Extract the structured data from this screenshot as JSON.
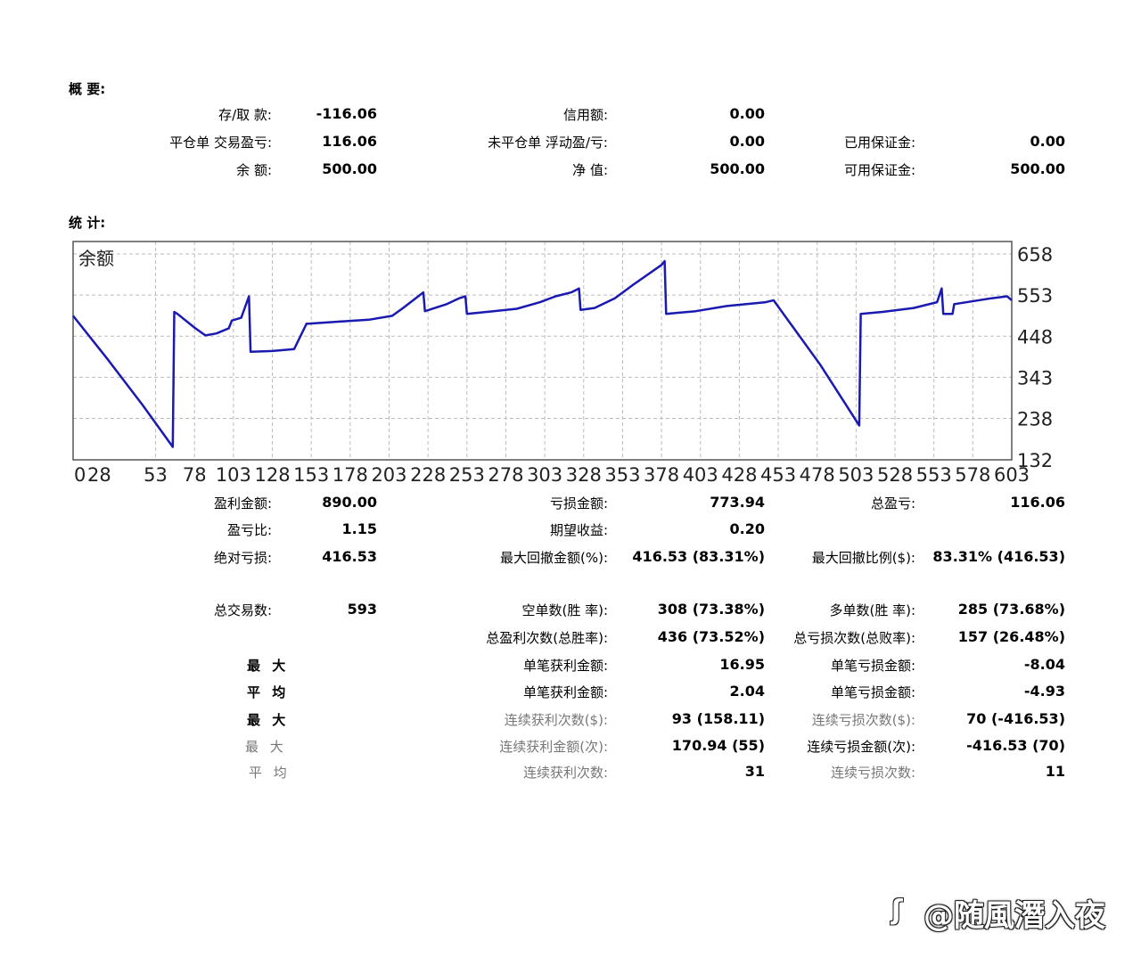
{
  "summary": {
    "title": "概 要:",
    "deposit_withdraw": {
      "label": "存/取 款:",
      "value": "-116.06"
    },
    "credit": {
      "label": "信用额:",
      "value": "0.00"
    },
    "closed_pl": {
      "label": "平仓单 交易盈亏:",
      "value": "116.06"
    },
    "floating_pl": {
      "label": "未平仓单 浮动盈/亏:",
      "value": "0.00"
    },
    "margin": {
      "label": "已用保证金:",
      "value": "0.00"
    },
    "balance": {
      "label": "余 额:",
      "value": "500.00"
    },
    "equity": {
      "label": "净 值:",
      "value": "500.00"
    },
    "free_margin": {
      "label": "可用保证金:",
      "value": "500.00"
    }
  },
  "stats_title": "统 计:",
  "chart_data": {
    "type": "line",
    "title": "余额",
    "xlabel": "",
    "ylabel": "",
    "x_ticks": [
      "0",
      "28",
      "53",
      "78",
      "103",
      "128",
      "153",
      "178",
      "203",
      "228",
      "253",
      "278",
      "303",
      "328",
      "353",
      "378",
      "403",
      "428",
      "453",
      "478",
      "503",
      "528",
      "553",
      "578",
      "603"
    ],
    "y_ticks": [
      "658",
      "553",
      "448",
      "343",
      "238",
      "132"
    ],
    "xlim": [
      0,
      603
    ],
    "ylim": [
      132,
      690
    ],
    "grid": true,
    "color": "#1a1ab0",
    "series": [
      {
        "name": "余额",
        "x": [
          0,
          22,
          45,
          64,
          65,
          67,
          78,
          85,
          92,
          100,
          102,
          108,
          113,
          114,
          128,
          142,
          150,
          151,
          170,
          190,
          205,
          212,
          225,
          226,
          240,
          248,
          252,
          253,
          270,
          285,
          300,
          310,
          320,
          325,
          326,
          335,
          348,
          360,
          378,
          380,
          381,
          400,
          420,
          445,
          450,
          480,
          505,
          506,
          520,
          540,
          555,
          558,
          559,
          565,
          566,
          590,
          600,
          603
        ],
        "y": [
          500,
          390,
          270,
          165,
          510,
          505,
          470,
          450,
          455,
          468,
          488,
          495,
          550,
          408,
          410,
          415,
          480,
          480,
          485,
          490,
          500,
          520,
          560,
          512,
          530,
          545,
          550,
          505,
          512,
          518,
          535,
          550,
          560,
          570,
          515,
          520,
          545,
          580,
          630,
          640,
          505,
          512,
          525,
          535,
          540,
          375,
          220,
          505,
          510,
          520,
          535,
          570,
          505,
          505,
          530,
          545,
          550,
          540
        ]
      }
    ]
  },
  "stats": {
    "gross_profit": {
      "label": "盈利金额:",
      "value": "890.00"
    },
    "gross_loss": {
      "label": "亏损金额:",
      "value": "773.94"
    },
    "total_net": {
      "label": "总盈亏:",
      "value": "116.06"
    },
    "profit_factor": {
      "label": "盈亏比:",
      "value": "1.15"
    },
    "expected": {
      "label": "期望收益:",
      "value": "0.20"
    },
    "abs_drawdown": {
      "label": "绝对亏损:",
      "value": "416.53"
    },
    "max_drawdown": {
      "label": "最大回撤金额(%):",
      "value": "416.53 (83.31%)"
    },
    "rel_drawdown": {
      "label": "最大回撤比例($):",
      "value": "83.31% (416.53)"
    },
    "total_trades": {
      "label": "总交易数:",
      "value": "593"
    },
    "short_trades": {
      "label": "空单数(胜 率):",
      "value": "308 (73.38%)"
    },
    "long_trades": {
      "label": "多单数(胜 率):",
      "value": "285 (73.68%)"
    },
    "profit_trades": {
      "label": "总盈利次数(总胜率):",
      "value": "436 (73.52%)"
    },
    "loss_trades": {
      "label": "总亏损次数(总败率):",
      "value": "157 (26.48%)"
    },
    "cat_largest": "最 大",
    "largest_profit": {
      "label": "单笔获利金额:",
      "value": "16.95"
    },
    "largest_loss": {
      "label": "单笔亏损金额:",
      "value": "-8.04"
    },
    "cat_average": "平 均",
    "avg_profit": {
      "label": "单笔获利金额:",
      "value": "2.04"
    },
    "avg_loss": {
      "label": "单笔亏损金额:",
      "value": "-4.93"
    },
    "cat_max1": "最 大",
    "max_consec_wins": {
      "label": "连续获利次数($):",
      "value": "93 (158.11)"
    },
    "max_consec_losses": {
      "label": "连续亏损次数($):",
      "value": "70 (-416.53)"
    },
    "cat_max2": "最 大",
    "max_consec_profit": {
      "label": "连续获利金额(次):",
      "value": "170.94 (55)"
    },
    "max_consec_loss": {
      "label": "连续亏损金额(次):",
      "value": "-416.53 (70)"
    },
    "cat_avg2": "平 均",
    "avg_consec_wins": {
      "label": "连续获利次数:",
      "value": "31"
    },
    "avg_consec_losses": {
      "label": "连续亏损次数:",
      "value": "11"
    }
  },
  "watermark": "@随風潛入夜"
}
